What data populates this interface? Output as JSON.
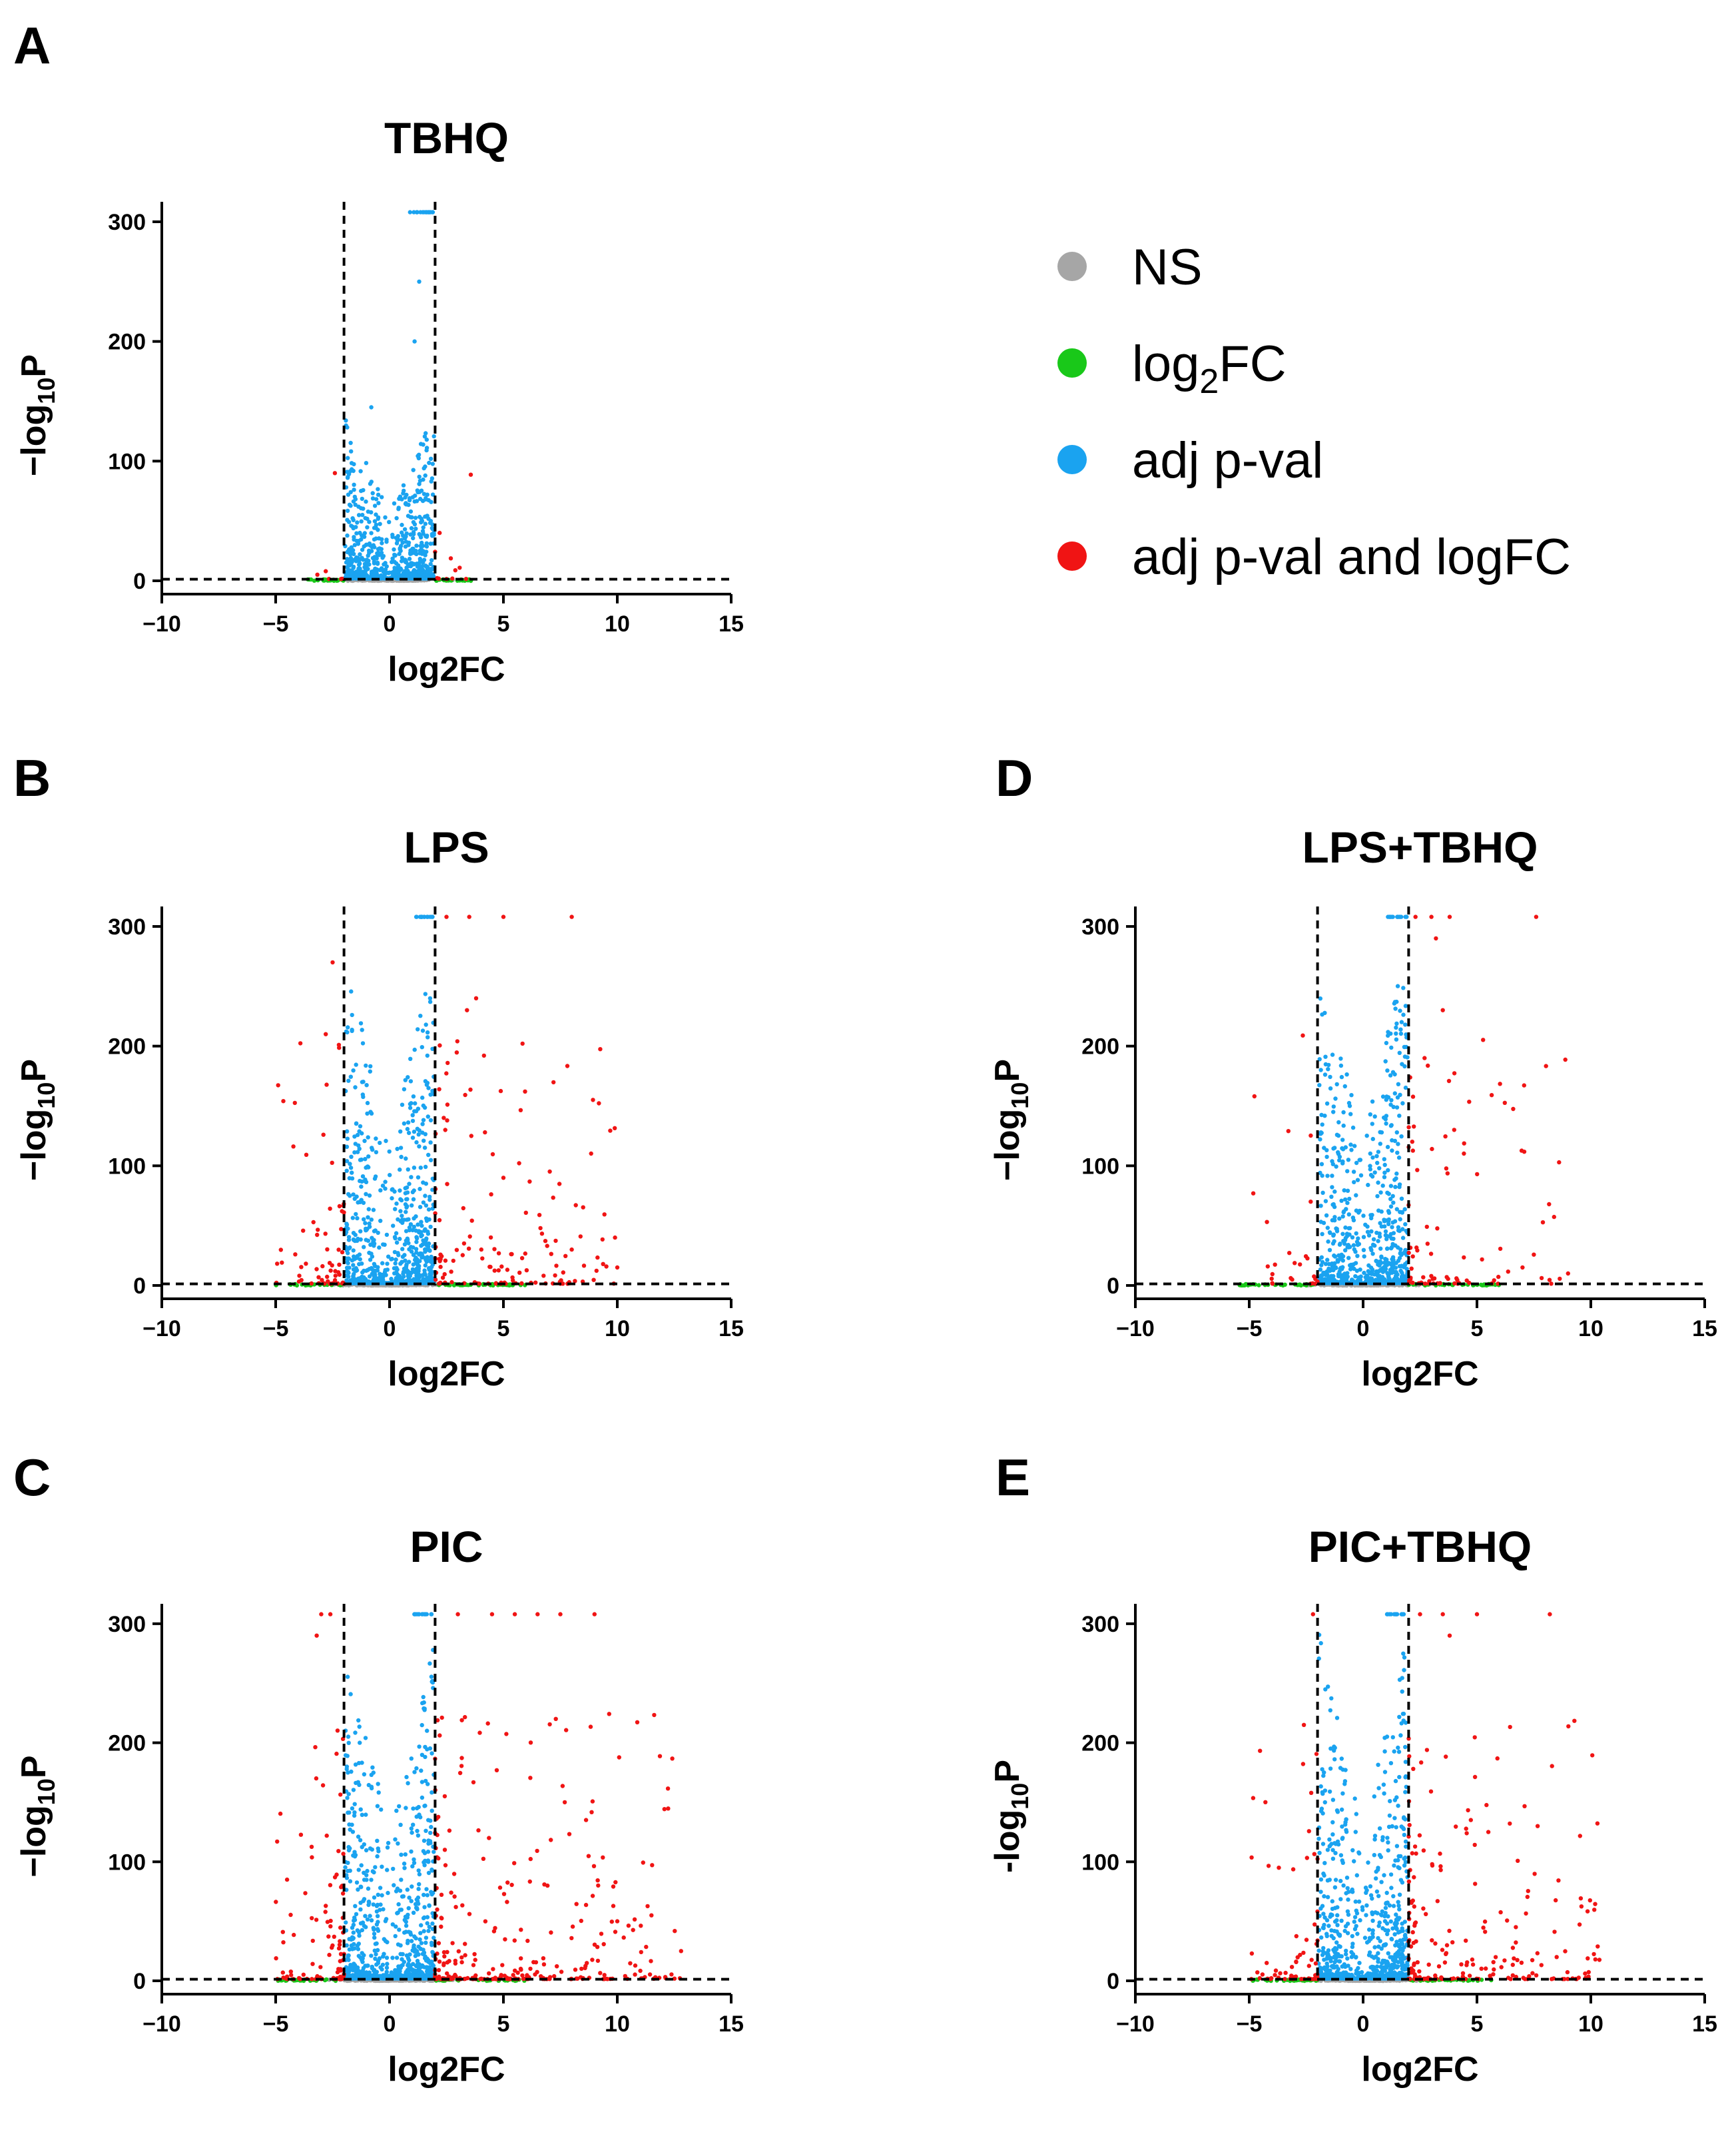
{
  "colors": {
    "ns": "#a6a6a6",
    "fc": "#19c819",
    "pv": "#1aa3f0",
    "both": "#f01414",
    "line": "#000000"
  },
  "legend": [
    {
      "label": "NS",
      "color": "#a6a6a6"
    },
    {
      "label_main": "log",
      "label_sub": "2",
      "label_tail": "FC",
      "color": "#19c819"
    },
    {
      "label": "adj p-val",
      "color": "#1aa3f0"
    },
    {
      "label": "adj p-val and logFC",
      "color": "#f01414"
    }
  ],
  "chart_data": [
    {
      "type": "scatter",
      "panel": "A",
      "title": "TBHQ",
      "xlabel": "log2FC",
      "ylabel_main": "−log",
      "ylabel_sub": "10",
      "ylabel_tail": "P",
      "xlim": [
        -10,
        15
      ],
      "ylim": [
        0,
        310
      ],
      "xticks": [
        "−10",
        "−5",
        "0",
        "5",
        "10",
        "15"
      ],
      "xtick_values": [
        -10,
        -5,
        0,
        5,
        10,
        15
      ],
      "yticks": [
        "0",
        "100",
        "200",
        "300"
      ],
      "ytick_values": [
        0,
        100,
        200,
        300
      ],
      "fc_threshold": [
        -2,
        2
      ],
      "p_threshold_neglog10": 1.3,
      "scatter_profile": {
        "left_fc_max": 3.6,
        "right_fc_max": 3.6,
        "blue_peak": 140,
        "red_count": 14,
        "outliers": [
          [
            0.9,
            308
          ],
          [
            1.2,
            308
          ],
          [
            1.5,
            308
          ],
          [
            1.7,
            308
          ],
          [
            1.3,
            250
          ],
          [
            1.1,
            200
          ],
          [
            -0.8,
            145
          ],
          [
            -2.4,
            90
          ],
          [
            2.2,
            40
          ],
          [
            -2.8,
            8
          ]
        ]
      }
    },
    {
      "type": "scatter",
      "panel": "B",
      "title": "LPS",
      "xlabel": "log2FC",
      "ylabel_main": "−log",
      "ylabel_sub": "10",
      "ylabel_tail": "P",
      "xlim": [
        -10,
        15
      ],
      "ylim": [
        0,
        310
      ],
      "xticks": [
        "−10",
        "−5",
        "0",
        "5",
        "10",
        "15"
      ],
      "xtick_values": [
        -10,
        -5,
        0,
        5,
        10,
        15
      ],
      "yticks": [
        "0",
        "100",
        "200",
        "300"
      ],
      "ytick_values": [
        0,
        100,
        200,
        300
      ],
      "fc_threshold": [
        -2,
        2
      ],
      "p_threshold_neglog10": 1.3,
      "scatter_profile": {
        "left_fc_max": 5,
        "right_fc_max": 10,
        "blue_peak": 280,
        "red_count": 200,
        "outliers": [
          [
            2.5,
            308
          ],
          [
            3.5,
            308
          ],
          [
            5.0,
            308
          ],
          [
            8.0,
            308
          ],
          [
            -2.5,
            270
          ],
          [
            -2.8,
            210
          ],
          [
            3.4,
            230
          ],
          [
            3.8,
            240
          ],
          [
            9.9,
            40
          ],
          [
            8.0,
            30
          ],
          [
            5.0,
            90
          ],
          [
            10.0,
            15
          ]
        ]
      }
    },
    {
      "type": "scatter",
      "panel": "C",
      "title": "PIC",
      "xlabel": "log2FC",
      "ylabel_main": "−log",
      "ylabel_sub": "10",
      "ylabel_tail": "P",
      "xlim": [
        -10,
        15
      ],
      "ylim": [
        0,
        310
      ],
      "xticks": [
        "−10",
        "−5",
        "0",
        "5",
        "10",
        "15"
      ],
      "xtick_values": [
        -10,
        -5,
        0,
        5,
        10,
        15
      ],
      "yticks": [
        "0",
        "100",
        "200",
        "300"
      ],
      "ytick_values": [
        0,
        100,
        200,
        300
      ],
      "fc_threshold": [
        -2,
        2
      ],
      "p_threshold_neglog10": 1.3,
      "scatter_profile": {
        "left_fc_max": 5,
        "right_fc_max": 13,
        "blue_peak": 300,
        "red_count": 380,
        "outliers": [
          [
            -3.0,
            308
          ],
          [
            -2.6,
            308
          ],
          [
            3.0,
            308
          ],
          [
            4.5,
            308
          ],
          [
            5.5,
            308
          ],
          [
            6.5,
            308
          ],
          [
            7.5,
            308
          ],
          [
            9.0,
            308
          ],
          [
            -3.2,
            290
          ],
          [
            7.3,
            220
          ],
          [
            10.0,
            50
          ],
          [
            11.5,
            55
          ],
          [
            12.8,
            25
          ],
          [
            -4.5,
            85
          ]
        ]
      }
    },
    {
      "type": "scatter",
      "panel": "D",
      "title": "LPS+TBHQ",
      "xlabel": "log2FC",
      "ylabel_main": "−log",
      "ylabel_sub": "10",
      "ylabel_tail": "P",
      "xlim": [
        -10,
        15
      ],
      "ylim": [
        0,
        310
      ],
      "xticks": [
        "−10",
        "−5",
        "0",
        "5",
        "10",
        "15"
      ],
      "xtick_values": [
        -10,
        -5,
        0,
        5,
        10,
        15
      ],
      "yticks": [
        "0",
        "100",
        "200",
        "300"
      ],
      "ytick_values": [
        0,
        100,
        200,
        300
      ],
      "fc_threshold": [
        -2,
        2
      ],
      "p_threshold_neglog10": 1.3,
      "scatter_profile": {
        "left_fc_max": 5.5,
        "right_fc_max": 9,
        "blue_peak": 290,
        "red_count": 110,
        "outliers": [
          [
            2.3,
            308
          ],
          [
            3.0,
            308
          ],
          [
            3.8,
            308
          ],
          [
            7.6,
            308
          ],
          [
            3.5,
            230
          ],
          [
            3.2,
            290
          ],
          [
            2.7,
            190
          ],
          [
            4.0,
            130
          ],
          [
            -2.3,
            70
          ],
          [
            7.0,
            15
          ],
          [
            9.0,
            10
          ]
        ]
      }
    },
    {
      "type": "scatter",
      "panel": "E",
      "title": "PIC+TBHQ",
      "xlabel": "log2FC",
      "ylabel_main": "-log",
      "ylabel_sub": "10",
      "ylabel_tail": "P",
      "xlim": [
        -10,
        15
      ],
      "ylim": [
        0,
        310
      ],
      "xticks": [
        "−10",
        "−5",
        "0",
        "5",
        "10",
        "15"
      ],
      "xtick_values": [
        -10,
        -5,
        0,
        5,
        10,
        15
      ],
      "yticks": [
        "0",
        "100",
        "200",
        "300"
      ],
      "ytick_values": [
        0,
        100,
        200,
        300
      ],
      "fc_threshold": [
        -2,
        2
      ],
      "p_threshold_neglog10": 1.3,
      "scatter_profile": {
        "left_fc_max": 5,
        "right_fc_max": 10.5,
        "blue_peak": 300,
        "red_count": 260,
        "outliers": [
          [
            -2.2,
            308
          ],
          [
            2.5,
            308
          ],
          [
            3.5,
            308
          ],
          [
            5.0,
            308
          ],
          [
            8.2,
            308
          ],
          [
            3.8,
            290
          ],
          [
            -2.6,
            215
          ],
          [
            5.5,
            125
          ],
          [
            8.5,
            20
          ],
          [
            10.2,
            18
          ],
          [
            -3.7,
            95
          ]
        ]
      }
    }
  ]
}
